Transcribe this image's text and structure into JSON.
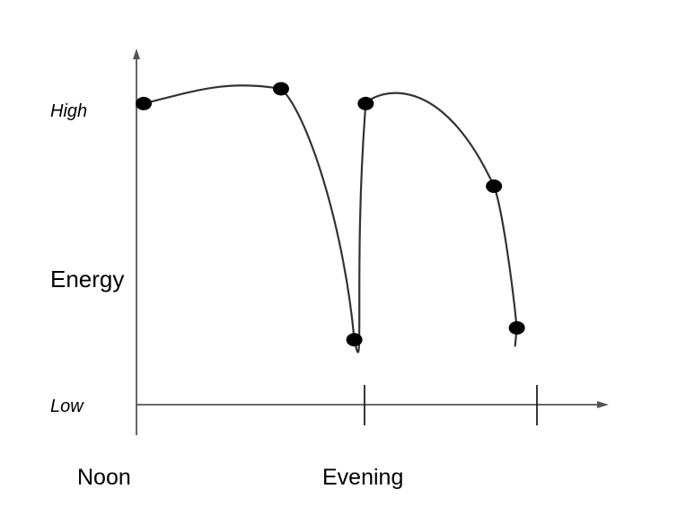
{
  "chart_data": {
    "type": "line",
    "title": "",
    "xlabel": "",
    "ylabel": "Energy",
    "y_tick_labels": [
      "High",
      "Low"
    ],
    "x_tick_labels": [
      "Noon",
      "Evening"
    ],
    "grid": false,
    "legend": "none",
    "x_range": [
      0,
      2
    ],
    "y_range": [
      0,
      1
    ],
    "series": [
      {
        "points": [
          {
            "x": 0.0,
            "y": 1.02
          },
          {
            "x": 0.6,
            "y": 1.07
          },
          {
            "x": 0.92,
            "y": 0.22
          },
          {
            "x": 0.97,
            "y": 1.02
          },
          {
            "x": 1.53,
            "y": 0.74
          },
          {
            "x": 1.63,
            "y": 0.26
          }
        ]
      }
    ],
    "colors": {
      "line": "#333333",
      "marker": "#000000",
      "axis": "#555555"
    }
  }
}
